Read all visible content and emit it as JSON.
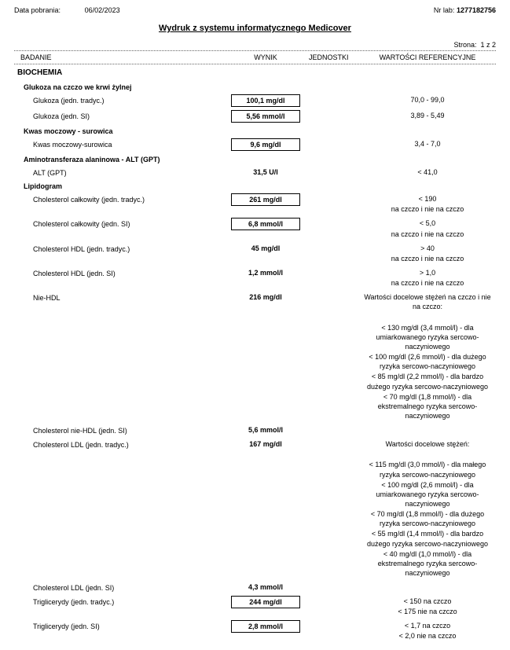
{
  "header": {
    "date_label": "Data pobrania:",
    "date_value": "06/02/2023",
    "lab_label": "Nr lab:",
    "lab_value": "1277182756"
  },
  "title": "Wydruk z systemu informatycznego Medicover",
  "page_label": "Strona:",
  "page_value": "1 z 2",
  "columns": {
    "name": "BADANIE",
    "result": "WYNIK",
    "unit": "JEDNOSTKI",
    "ref": "WARTOŚCI REFERENCYJNE"
  },
  "section": "BIOCHEMIA",
  "groups": [
    {
      "title": "Glukoza na czczo we krwi żylnej",
      "rows": [
        {
          "name": "Glukoza (jedn. tradyc.)",
          "result": "100,1 mg/dl",
          "boxed": true,
          "ref": [
            "70,0 - 99,0"
          ]
        },
        {
          "name": "Glukoza (jedn. SI)",
          "result": "5,56 mmol/l",
          "boxed": true,
          "ref": [
            "3,89 - 5,49"
          ]
        }
      ]
    },
    {
      "title": "Kwas moczowy - surowica",
      "rows": [
        {
          "name": "Kwas moczowy-surowica",
          "result": "9,6 mg/dl",
          "boxed": true,
          "ref": [
            "3,4 - 7,0"
          ]
        }
      ]
    },
    {
      "title": "Aminotransferaza alaninowa - ALT (GPT)",
      "rows": [
        {
          "name": "ALT (GPT)",
          "result": "31,5 U/l",
          "boxed": false,
          "ref": [
            "< 41,0"
          ]
        }
      ]
    },
    {
      "title": "Lipidogram",
      "rows": [
        {
          "name": "Cholesterol całkowity (jedn. tradyc.)",
          "result": "261 mg/dl",
          "boxed": true,
          "ref": [
            "< 190",
            "na czczo i nie na czczo"
          ]
        },
        {
          "name": "Cholesterol całkowity (jedn. SI)",
          "result": "6,8 mmol/l",
          "boxed": true,
          "ref": [
            "< 5,0",
            "na czczo i nie na czczo"
          ]
        },
        {
          "name": "Cholesterol HDL (jedn. tradyc.)",
          "result": "45 mg/dl",
          "boxed": false,
          "ref": [
            "> 40",
            "na czczo i nie na czczo"
          ]
        },
        {
          "name": "Cholesterol HDL (jedn. SI)",
          "result": "1,2 mmol/l",
          "boxed": false,
          "ref": [
            "> 1,0",
            "na czczo i nie na czczo"
          ]
        },
        {
          "name": "Nie-HDL",
          "result": "216 mg/dl",
          "boxed": false,
          "ref": [
            "Wartości docelowe stężeń na czczo i nie na czczo:",
            "",
            "< 130 mg/dl (3,4 mmol/l) - dla umiarkowanego ryzyka sercowo-naczyniowego",
            "< 100 mg/dl (2,6 mmol/l) - dla dużego ryzyka sercowo-naczyniowego",
            "< 85 mg/dl (2,2 mmol/l) - dla bardzo dużego ryzyka sercowo-naczyniowego",
            "< 70 mg/dl (1,8 mmol/l) - dla ekstremalnego ryzyka sercowo-naczyniowego"
          ]
        },
        {
          "name": "Cholesterol nie-HDL (jedn. SI)",
          "result": "5,6 mmol/l",
          "boxed": false,
          "ref": []
        },
        {
          "name": "Cholesterol LDL (jedn. tradyc.)",
          "result": "167 mg/dl",
          "boxed": false,
          "ref": [
            "Wartości docelowe stężeń:",
            "",
            "< 115 mg/dl (3,0 mmol/l) - dla małego ryzyka sercowo-naczyniowego",
            "< 100 mg/dl (2,6 mmol/l) - dla umiarkowanego ryzyka sercowo-naczyniowego",
            "< 70 mg/dl (1,8 mmol/l) - dla dużego ryzyka sercowo-naczyniowego",
            "< 55 mg/dl (1,4 mmol/l) - dla bardzo dużego ryzyka sercowo-naczyniowego",
            "< 40 mg/dl (1,0 mmol/l) - dla ekstremalnego ryzyka sercowo-naczyniowego"
          ]
        },
        {
          "name": "Cholesterol LDL (jedn. SI)",
          "result": "4,3 mmol/l",
          "boxed": false,
          "ref": []
        },
        {
          "name": "Triglicerydy (jedn. tradyc.)",
          "result": "244 mg/dl",
          "boxed": true,
          "ref": [
            "< 150 na czczo",
            "< 175 nie na czczo"
          ]
        },
        {
          "name": "Triglicerydy (jedn. SI)",
          "result": "2,8 mmol/l",
          "boxed": true,
          "ref": [
            "< 1,7 na czczo",
            "< 2,0 nie na czczo"
          ]
        }
      ]
    }
  ]
}
